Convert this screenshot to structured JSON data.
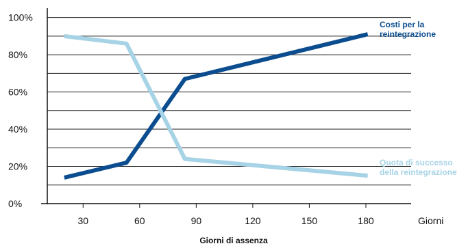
{
  "chart_data": {
    "type": "line",
    "xlabel": "Giorni di assenza",
    "x_unit": "Giorni",
    "x_ticks": [
      "30",
      "60",
      "90",
      "120",
      "150",
      "180"
    ],
    "x_tick_values": [
      30,
      60,
      90,
      120,
      150,
      180
    ],
    "y_ticks": [
      "0%",
      "20%",
      "40%",
      "60%",
      "80%",
      "100%"
    ],
    "y_tick_values": [
      0,
      20,
      40,
      60,
      80,
      100
    ],
    "xlim": [
      11,
      204
    ],
    "ylim": [
      0,
      105
    ],
    "grid": true,
    "series": [
      {
        "name_lines": [
          "Costi per la",
          "reintegrazione"
        ],
        "color": "#0b4d8f",
        "x": [
          20,
          53,
          84,
          181
        ],
        "y": [
          14,
          22,
          67,
          91
        ]
      },
      {
        "name_lines": [
          "Quota di successo",
          "della reintegrazione"
        ],
        "color": "#a7d3e6",
        "x": [
          20,
          53,
          84,
          181
        ],
        "y": [
          90,
          86,
          24,
          15
        ]
      }
    ]
  }
}
